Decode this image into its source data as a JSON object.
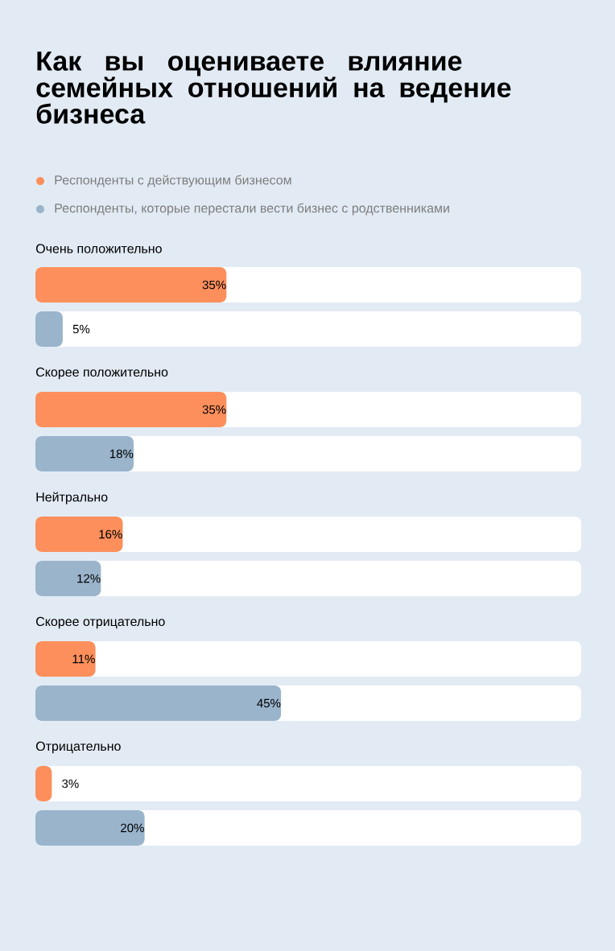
{
  "chart_data": {
    "type": "bar",
    "orientation": "horizontal",
    "title": "Как вы оцениваете влияние семейных отношений на ведение бизнеса",
    "categories": [
      "Очень положительно",
      "Скорее положительно",
      "Нейтрально",
      "Скорее отрицательно",
      "Отрицательно"
    ],
    "series": [
      {
        "name": "Респонденты с действующим бизнесом",
        "color": "#fc8f5b",
        "values": [
          35,
          35,
          16,
          11,
          3
        ],
        "value_labels": [
          "35%",
          "35%",
          "16%",
          "11%",
          "3%"
        ]
      },
      {
        "name": "Респонденты, которые перестали вести бизнес с родственниками",
        "color": "#9ab4cc",
        "values": [
          5,
          18,
          12,
          45,
          20
        ],
        "value_labels": [
          "5%",
          "18%",
          "12%",
          "45%",
          "20%"
        ]
      }
    ],
    "xlim": [
      0,
      100
    ],
    "legend": "top left"
  }
}
